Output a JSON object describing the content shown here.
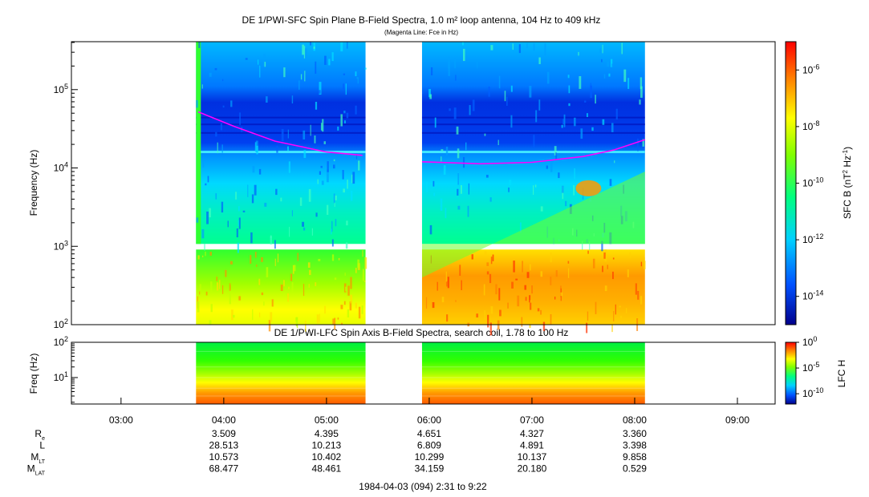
{
  "chart_data": [
    {
      "type": "heatmap",
      "title": "DE 1/PWI-SFC  Spin Plane B-Field Spectra, 1.0 m² loop antenna, 104 Hz to 409 kHz",
      "subtitle": "(Magenta Line: Fce in Hz)",
      "ylabel": "Frequency (Hz)",
      "y_scale": "log",
      "ylim": [
        100,
        409000
      ],
      "y_ticks": [
        {
          "value": 100,
          "base": "10",
          "exp": "2"
        },
        {
          "value": 1000,
          "base": "10",
          "exp": "3"
        },
        {
          "value": 10000,
          "base": "10",
          "exp": "4"
        },
        {
          "value": 100000,
          "base": "10",
          "exp": "5"
        }
      ],
      "colorbar": {
        "label_base": "SFC B (nT",
        "label_exp1": "2",
        "label_mid": " Hz",
        "label_exp2": "-1",
        "label_end": ")",
        "scale": "log",
        "range": [
          1e-15,
          1e-05
        ],
        "ticks": [
          {
            "value": 1e-06,
            "base": "10",
            "exp": "-6"
          },
          {
            "value": 1e-08,
            "base": "10",
            "exp": "-8"
          },
          {
            "value": 1e-10,
            "base": "10",
            "exp": "-10"
          },
          {
            "value": 1e-12,
            "base": "10",
            "exp": "-12"
          },
          {
            "value": 1e-14,
            "base": "10",
            "exp": "-14"
          }
        ],
        "colormap": [
          "#00008c",
          "#0050ff",
          "#00d0ff",
          "#00ff80",
          "#80ff00",
          "#ffff00",
          "#ff8000",
          "#ff0000"
        ]
      },
      "data_intervals_hours": [
        [
          3.73,
          5.38
        ],
        [
          5.93,
          8.1
        ]
      ],
      "fce_line_color": "#ff00ff",
      "fce_line": [
        {
          "t": 3.75,
          "f": 52000
        },
        {
          "t": 4.1,
          "f": 34000
        },
        {
          "t": 4.5,
          "f": 22000
        },
        {
          "t": 5.0,
          "f": 16000
        },
        {
          "t": 5.35,
          "f": 14500
        },
        {
          "t": 5.93,
          "f": 12000
        },
        {
          "t": 6.5,
          "f": 11300
        },
        {
          "t": 7.0,
          "f": 11800
        },
        {
          "t": 7.5,
          "f": 14000
        },
        {
          "t": 7.8,
          "f": 17000
        },
        {
          "t": 8.1,
          "f": 23000
        }
      ]
    },
    {
      "type": "heatmap",
      "title": "DE 1/PWI-LFC  Spin Axis B-Field Spectra, search coil, 1.78 to 100 Hz",
      "ylabel": "Freq (Hz)",
      "y_scale": "log",
      "ylim": [
        1.78,
        100
      ],
      "y_ticks": [
        {
          "value": 10,
          "base": "10",
          "exp": "1"
        },
        {
          "value": 100,
          "base": "10",
          "exp": "2"
        }
      ],
      "colorbar": {
        "label": "LFC H",
        "scale": "log",
        "range": [
          1e-12,
          1
        ],
        "ticks": [
          {
            "value": 1,
            "base": "10",
            "exp": "0"
          },
          {
            "value": 1e-05,
            "base": "10",
            "exp": "-5"
          },
          {
            "value": 1e-10,
            "base": "10",
            "exp": "-10"
          }
        ],
        "colormap": [
          "#00008c",
          "#0050ff",
          "#00d0ff",
          "#00ff80",
          "#80ff00",
          "#ffff00",
          "#ff8000",
          "#ff0000"
        ]
      },
      "data_intervals_hours": [
        [
          3.73,
          5.38
        ],
        [
          5.93,
          8.1
        ]
      ]
    }
  ],
  "time_axis": {
    "xlim_hours": [
      2.517,
      9.367
    ],
    "ticks": [
      {
        "hour": 3,
        "label": "03:00"
      },
      {
        "hour": 4,
        "label": "04:00"
      },
      {
        "hour": 5,
        "label": "05:00"
      },
      {
        "hour": 6,
        "label": "06:00"
      },
      {
        "hour": 7,
        "label": "07:00"
      },
      {
        "hour": 8,
        "label": "08:00"
      },
      {
        "hour": 9,
        "label": "09:00"
      }
    ]
  },
  "ephemeris": {
    "rows": [
      {
        "name": "R",
        "sub": "e",
        "values": [
          "3.509",
          "4.395",
          "4.651",
          "4.327",
          "3.360"
        ]
      },
      {
        "name": "L",
        "sub": "",
        "values": [
          "28.513",
          "10.213",
          "6.809",
          "4.891",
          "3.398"
        ]
      },
      {
        "name": "M",
        "sub": "LT",
        "values": [
          "10.573",
          "10.402",
          "10.299",
          "10.137",
          "9.858"
        ]
      },
      {
        "name": "M",
        "sub": "LAT",
        "values": [
          "68.477",
          "48.461",
          "34.159",
          "20.180",
          "0.529"
        ]
      }
    ],
    "hours": [
      4,
      5,
      6,
      7,
      8
    ]
  },
  "footer": "1984-04-03 (094) 2:31 to 9:22"
}
